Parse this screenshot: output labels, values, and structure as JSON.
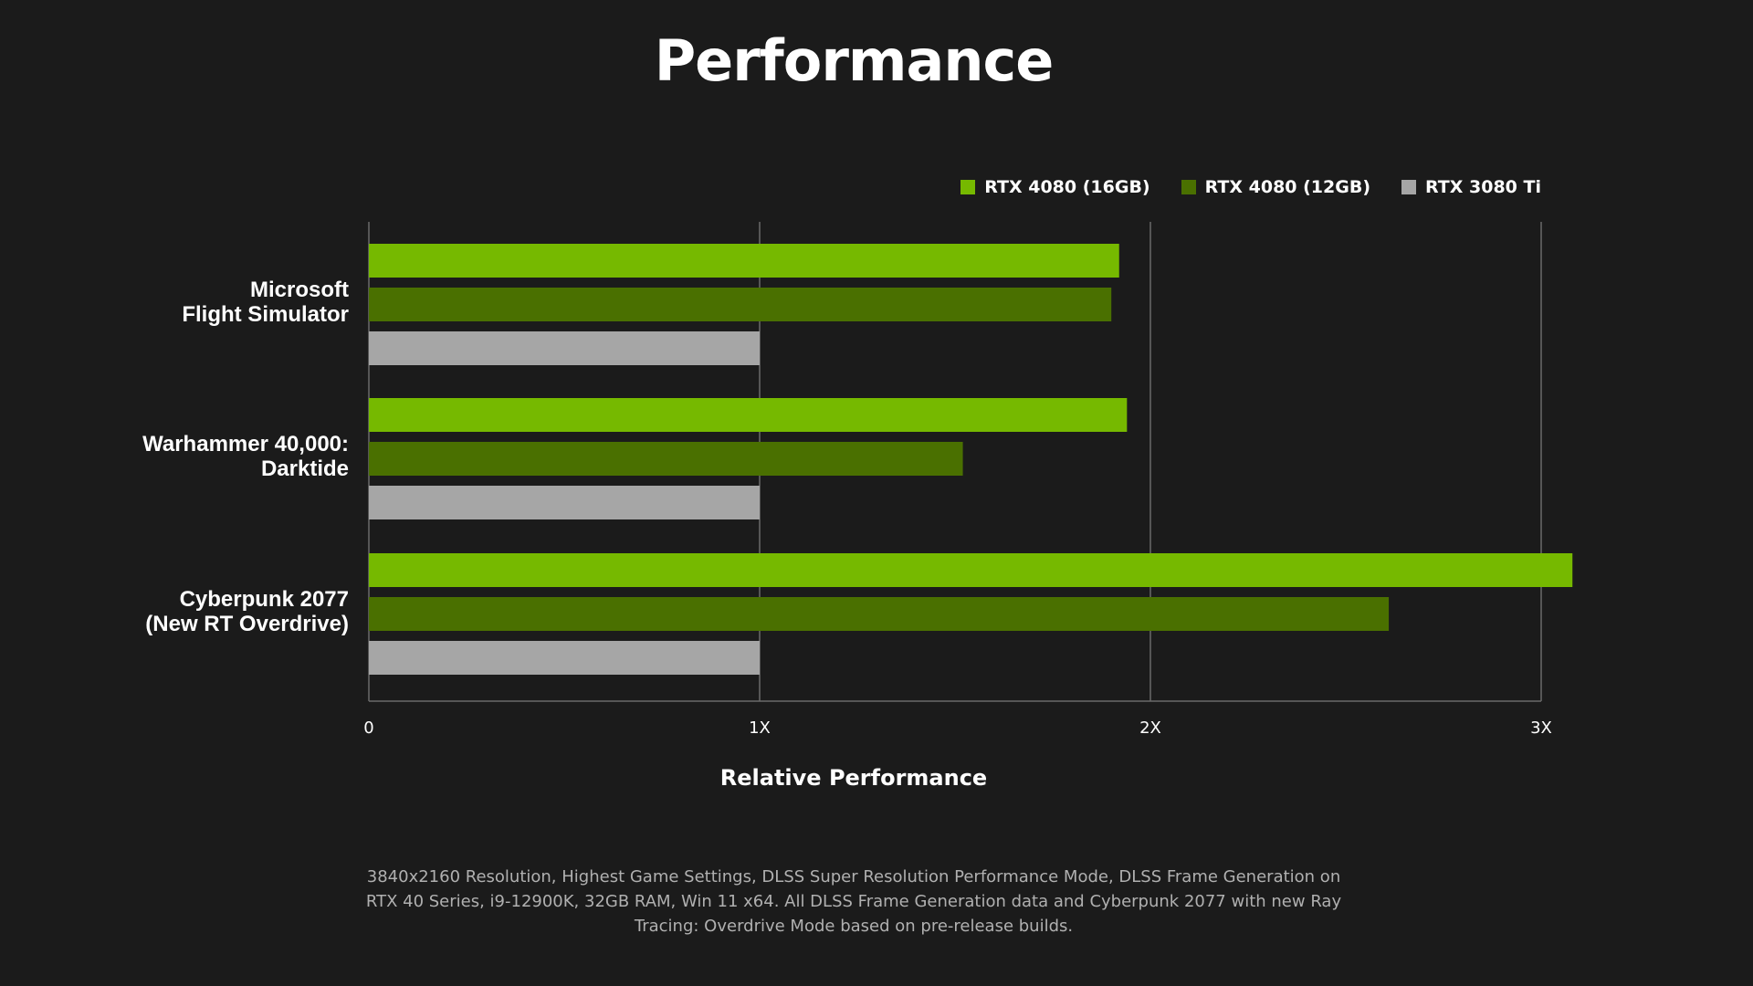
{
  "colors": {
    "background": "#1b1b1b",
    "grid": "#6a6a6a"
  },
  "footnote": "3840x2160 Resolution, Highest Game Settings, DLSS Super Resolution Performance Mode, DLSS Frame Generation on RTX 40 Series, i9-12900K, 32GB RAM, Win 11 x64. All DLSS Frame Generation data and Cyberpunk 2077 with new Ray Tracing: Overdrive Mode based on pre-release builds.",
  "chart_data": {
    "type": "bar",
    "orientation": "horizontal",
    "title": "Performance",
    "xlabel": "Relative Performance",
    "ylabel": "",
    "xlim": [
      0,
      3
    ],
    "ticks": [
      {
        "value": 0,
        "label": "0"
      },
      {
        "value": 1,
        "label": "1X"
      },
      {
        "value": 2,
        "label": "2X"
      },
      {
        "value": 3,
        "label": "3X"
      }
    ],
    "grid": true,
    "legend_position": "top-right",
    "categories": [
      [
        "Microsoft",
        "Flight Simulator"
      ],
      [
        "Warhammer 40,000:",
        "Darktide"
      ],
      [
        "Cyberpunk 2077",
        "(New RT Overdrive)"
      ]
    ],
    "series": [
      {
        "name": "RTX 4080 (16GB)",
        "color": "#76b900",
        "values": [
          1.92,
          1.94,
          3.08
        ]
      },
      {
        "name": "RTX 4080 (12GB)",
        "color": "#4a7000",
        "values": [
          1.9,
          1.52,
          2.61
        ]
      },
      {
        "name": "RTX 3080 Ti",
        "color": "#a6a6a6",
        "values": [
          1.0,
          1.0,
          1.0
        ]
      }
    ]
  }
}
